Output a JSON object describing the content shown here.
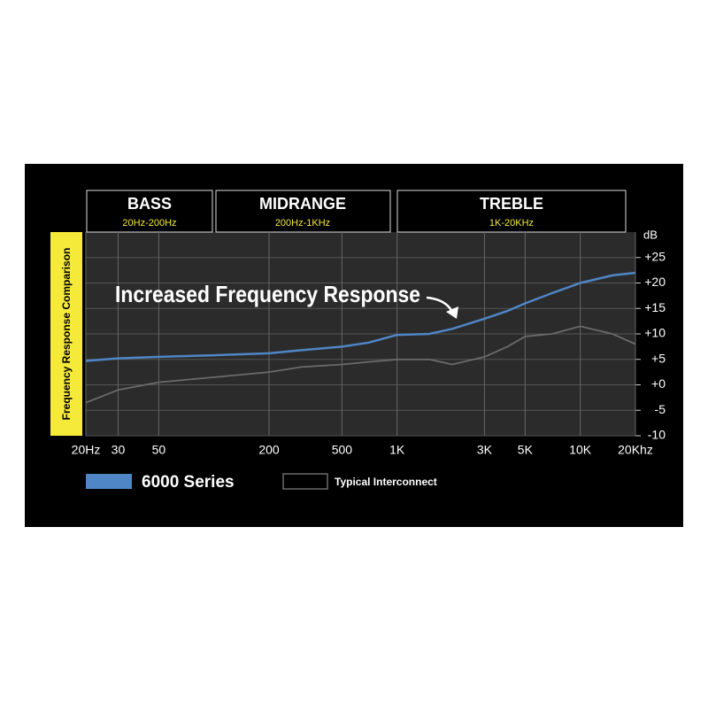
{
  "chart_data": {
    "type": "line",
    "y_axis_label": "Frequency Response Comparison",
    "y_unit_label": "dB",
    "annotation": "Increased Frequency Response",
    "bands": [
      {
        "name": "BASS",
        "range": "20Hz-200Hz"
      },
      {
        "name": "MIDRANGE",
        "range": "200Hz-1KHz"
      },
      {
        "name": "TREBLE",
        "range": "1K-20KHz"
      }
    ],
    "x_scale": "log",
    "x": [
      20,
      30,
      50,
      100,
      200,
      300,
      500,
      700,
      1000,
      1500,
      2000,
      3000,
      4000,
      5000,
      7000,
      10000,
      15000,
      20000
    ],
    "series": [
      {
        "name": "6000 Series",
        "color": "#4f86c6",
        "values": [
          4.7,
          5.2,
          5.5,
          5.8,
          6.2,
          6.8,
          7.5,
          8.3,
          9.8,
          10,
          11,
          13,
          14.5,
          16,
          18,
          20,
          21.5,
          22
        ]
      },
      {
        "name": "Typical Interconnect",
        "color": "#6a6a6a",
        "values": [
          -3.5,
          -1,
          0.5,
          1.5,
          2.5,
          3.5,
          4,
          4.5,
          5,
          5,
          4,
          5.5,
          7.5,
          9.5,
          10,
          11.5,
          10,
          8
        ]
      }
    ],
    "xlim": [
      20,
      20000
    ],
    "xticks": [
      {
        "value": 20,
        "label": "20Hz"
      },
      30,
      50,
      200,
      500,
      {
        "value": 1000,
        "label": "1K"
      },
      {
        "value": 3000,
        "label": "3K"
      },
      {
        "value": 5000,
        "label": "5K"
      },
      {
        "value": 10000,
        "label": "10K"
      },
      {
        "value": 20000,
        "label": "20Khz"
      }
    ],
    "ylim": [
      -10,
      30
    ],
    "yticks": [
      {
        "value": 25,
        "label": "+25"
      },
      {
        "value": 20,
        "label": "+20"
      },
      {
        "value": 15,
        "label": "+15"
      },
      {
        "value": 10,
        "label": "+10"
      },
      {
        "value": 5,
        "label": "+5"
      },
      {
        "value": 0,
        "label": "+0"
      },
      -5,
      -10
    ],
    "grid": true
  }
}
